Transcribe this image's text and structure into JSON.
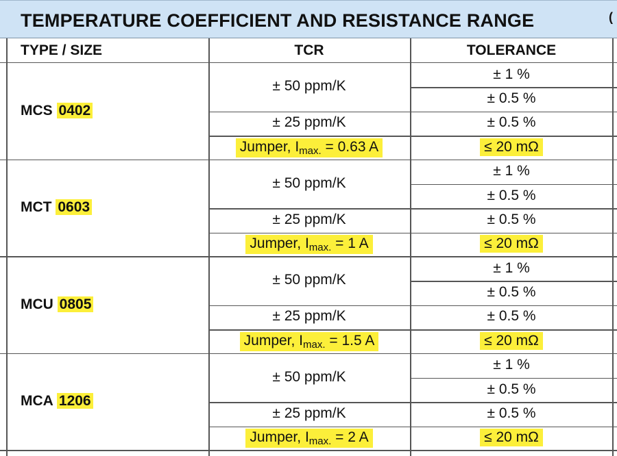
{
  "title": "TEMPERATURE COEFFICIENT AND RESISTANCE RANGE",
  "title_suffix": "(",
  "headers": {
    "type": "TYPE / SIZE",
    "tcr": "TCR",
    "tolerance": "TOLERANCE"
  },
  "highlight_color": "#fcef3a",
  "header_bg": "#cfe3f5",
  "groups": [
    {
      "type": "MCS",
      "size": "0402",
      "tcr_a": "± 50 ppm/K",
      "tol_a1": "± 1 %",
      "tol_a2": "± 0.5 %",
      "tcr_b": "± 25 ppm/K",
      "tol_b": "± 0.5 %",
      "jumper_prefix": "Jumper, I",
      "jumper_sub": "max.",
      "jumper_value": " = 0.63 A",
      "jumper_tol": "≤ 20 mΩ"
    },
    {
      "type": "MCT",
      "size": "0603",
      "tcr_a": "± 50 ppm/K",
      "tol_a1": "± 1 %",
      "tol_a2": "± 0.5 %",
      "tcr_b": "± 25 ppm/K",
      "tol_b": "± 0.5 %",
      "jumper_prefix": "Jumper, I",
      "jumper_sub": "max.",
      "jumper_value": " = 1 A",
      "jumper_tol": "≤ 20 mΩ"
    },
    {
      "type": "MCU",
      "size": "0805",
      "tcr_a": "± 50 ppm/K",
      "tol_a1": "± 1 %",
      "tol_a2": "± 0.5 %",
      "tcr_b": "± 25 ppm/K",
      "tol_b": "± 0.5 %",
      "jumper_prefix": "Jumper, I",
      "jumper_sub": "max.",
      "jumper_value": " = 1.5 A",
      "jumper_tol": "≤ 20 mΩ"
    },
    {
      "type": "MCA",
      "size": "1206",
      "tcr_a": "± 50 ppm/K",
      "tol_a1": "± 1 %",
      "tol_a2": "± 0.5 %",
      "tcr_b": "± 25 ppm/K",
      "tol_b": "± 0.5 %",
      "jumper_prefix": "Jumper, I",
      "jumper_sub": "max.",
      "jumper_value": " = 2 A",
      "jumper_tol": "≤ 20 mΩ"
    }
  ]
}
